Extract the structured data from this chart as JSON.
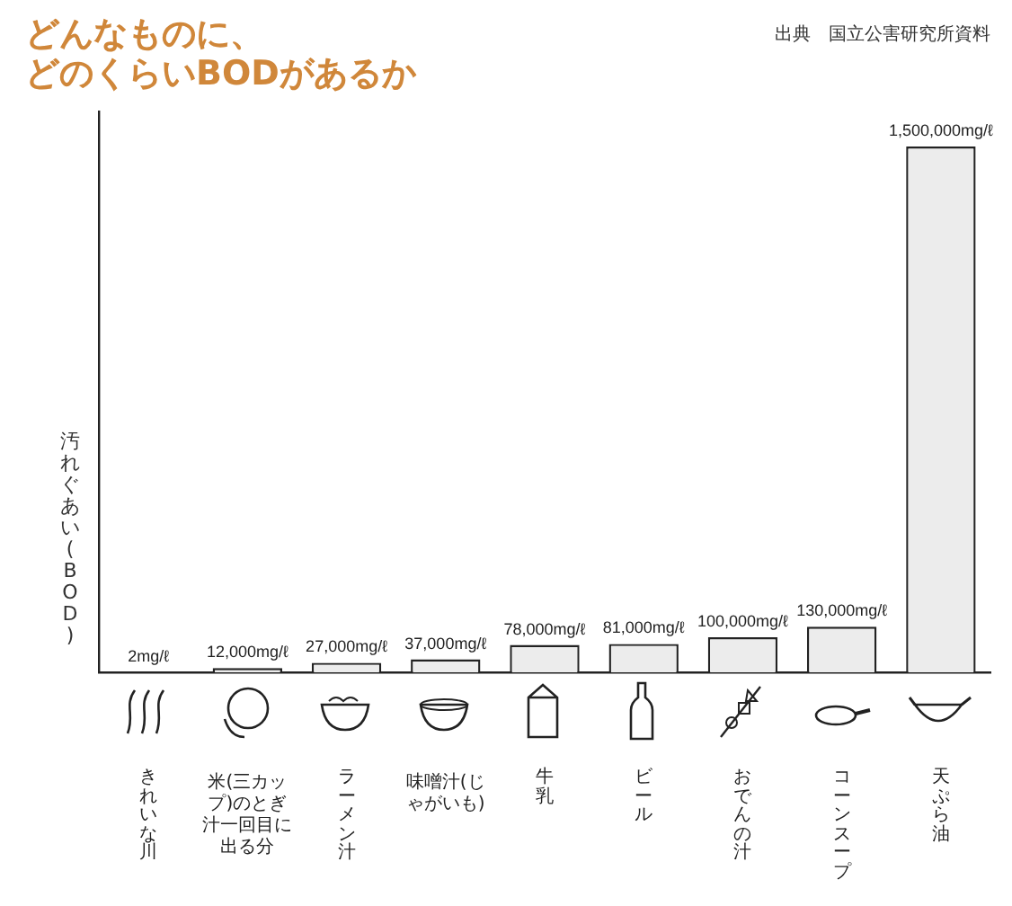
{
  "chart_data": {
    "type": "bar",
    "title": "どんなものに、どのくらいBODがあるか",
    "ylabel": "汚れぐあい(BOD)",
    "annotations": [
      "出典　国立公害研究所資料"
    ],
    "categories": [
      "きれいな川",
      "米(三カップ)のとぎ汁一回目に出る分",
      "ラーメン汁",
      "味噌汁(じゃがいも)",
      "牛乳",
      "ビール",
      "おでんの汁",
      "コーンスープ",
      "天ぷら油"
    ],
    "values": [
      2,
      12000,
      27000,
      37000,
      78000,
      81000,
      100000,
      130000,
      1500000
    ],
    "value_labels": [
      "2mg/ℓ",
      "12,000mg/ℓ",
      "27,000mg/ℓ",
      "37,000mg/ℓ",
      "78,000mg/ℓ",
      "81,000mg/ℓ",
      "100,000mg/ℓ",
      "130,000mg/ℓ",
      "1,500,000mg/ℓ"
    ],
    "color": "#ececec",
    "grid": false,
    "legend": false
  }
}
